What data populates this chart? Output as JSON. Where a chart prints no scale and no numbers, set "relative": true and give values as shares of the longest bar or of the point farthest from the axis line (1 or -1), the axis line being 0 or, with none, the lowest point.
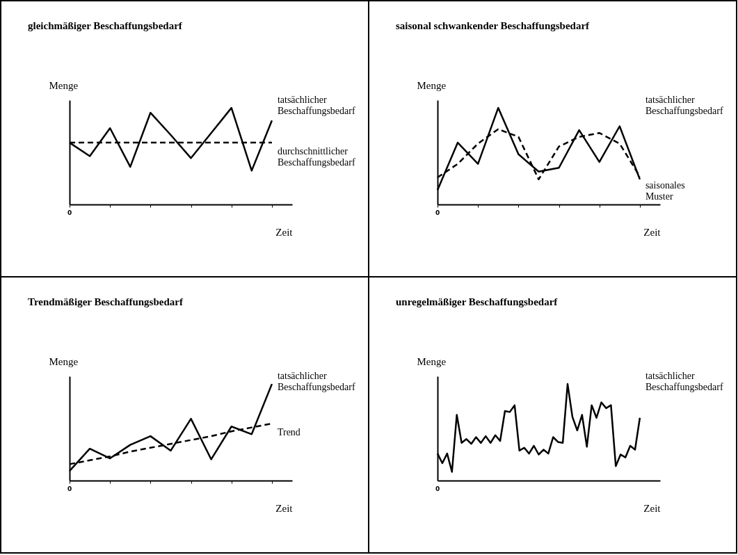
{
  "chart_data": [
    {
      "type": "line",
      "title": "gleichmäßiger Beschaffungsbedarf",
      "xlabel": "Zeit",
      "ylabel": "Menge",
      "relative": true,
      "annotations": [
        "0"
      ],
      "grid": false,
      "marker": "none",
      "categories": [
        null,
        null,
        null,
        null,
        null,
        null,
        null,
        null,
        null,
        null,
        null
      ],
      "series": [
        {
          "name": "tatsächlicher Beschaffungsbedarf",
          "color": "#000000",
          "line_style": "solid",
          "values": [
            0.64,
            0.5,
            0.79,
            0.39,
            0.95,
            0.72,
            0.48,
            0.74,
            1.0,
            0.35,
            0.87
          ]
        },
        {
          "name": "durchschnittlicher Beschaffungsbedarf",
          "color": "#000000",
          "line_style": "dashed",
          "values": [
            0.64,
            0.64,
            0.64,
            0.64,
            0.64,
            0.64,
            0.64,
            0.64,
            0.64,
            0.64,
            0.64
          ]
        }
      ]
    },
    {
      "type": "line",
      "title": "saisonal schwankender Beschaffungsbedarf",
      "xlabel": "Zeit",
      "ylabel": "Menge",
      "relative": true,
      "annotations": [
        "0"
      ],
      "grid": false,
      "marker": "none",
      "categories": [
        null,
        null,
        null,
        null,
        null,
        null,
        null,
        null,
        null,
        null,
        null
      ],
      "series": [
        {
          "name": "tatsächlicher Beschaffungsbedarf",
          "color": "#000000",
          "line_style": "solid",
          "values": [
            0.15,
            0.64,
            0.42,
            1.0,
            0.52,
            0.34,
            0.38,
            0.77,
            0.44,
            0.81,
            0.26
          ]
        },
        {
          "name": "saisonales Muster",
          "color": "#000000",
          "line_style": "dashed",
          "values": [
            0.28,
            0.42,
            0.63,
            0.78,
            0.7,
            0.26,
            0.6,
            0.7,
            0.74,
            0.63,
            0.29
          ]
        }
      ]
    },
    {
      "type": "line",
      "title": "Trendmäßiger Beschaffungsbedarf",
      "xlabel": "Zeit",
      "ylabel": "Menge",
      "relative": true,
      "annotations": [
        "0"
      ],
      "grid": false,
      "marker": "none",
      "categories": [
        null,
        null,
        null,
        null,
        null,
        null,
        null,
        null,
        null,
        null,
        null
      ],
      "series": [
        {
          "name": "tatsächlicher Beschaffungsbedarf",
          "color": "#000000",
          "line_style": "solid",
          "values": [
            0.1,
            0.33,
            0.23,
            0.37,
            0.46,
            0.31,
            0.64,
            0.22,
            0.56,
            0.48,
            1.0
          ]
        },
        {
          "name": "Trend",
          "color": "#000000",
          "line_style": "dashed",
          "values": [
            0.17,
            0.21,
            0.25,
            0.3,
            0.34,
            0.38,
            0.42,
            0.46,
            0.51,
            0.55,
            0.59
          ]
        }
      ]
    },
    {
      "type": "line",
      "title": "unregelmäßiger Beschaffungsbedarf",
      "xlabel": "Zeit",
      "ylabel": "Menge",
      "relative": true,
      "annotations": [
        "0"
      ],
      "grid": false,
      "marker": "none",
      "categories": [
        null,
        null,
        null,
        null,
        null,
        null,
        null,
        null,
        null,
        null,
        null,
        null,
        null,
        null,
        null,
        null,
        null,
        null,
        null,
        null,
        null,
        null,
        null,
        null,
        null,
        null,
        null,
        null,
        null,
        null,
        null,
        null,
        null,
        null,
        null,
        null,
        null,
        null,
        null,
        null,
        null,
        null,
        null
      ],
      "series": [
        {
          "name": "tatsächlicher Beschaffungsbedarf",
          "color": "#000000",
          "line_style": "solid",
          "values": [
            0.28,
            0.18,
            0.28,
            0.09,
            0.68,
            0.39,
            0.43,
            0.38,
            0.45,
            0.39,
            0.46,
            0.39,
            0.47,
            0.41,
            0.72,
            0.71,
            0.78,
            0.31,
            0.34,
            0.28,
            0.36,
            0.27,
            0.32,
            0.28,
            0.45,
            0.4,
            0.39,
            1.0,
            0.66,
            0.52,
            0.68,
            0.35,
            0.78,
            0.65,
            0.81,
            0.75,
            0.78,
            0.15,
            0.27,
            0.24,
            0.36,
            0.32,
            0.65
          ]
        }
      ]
    }
  ]
}
